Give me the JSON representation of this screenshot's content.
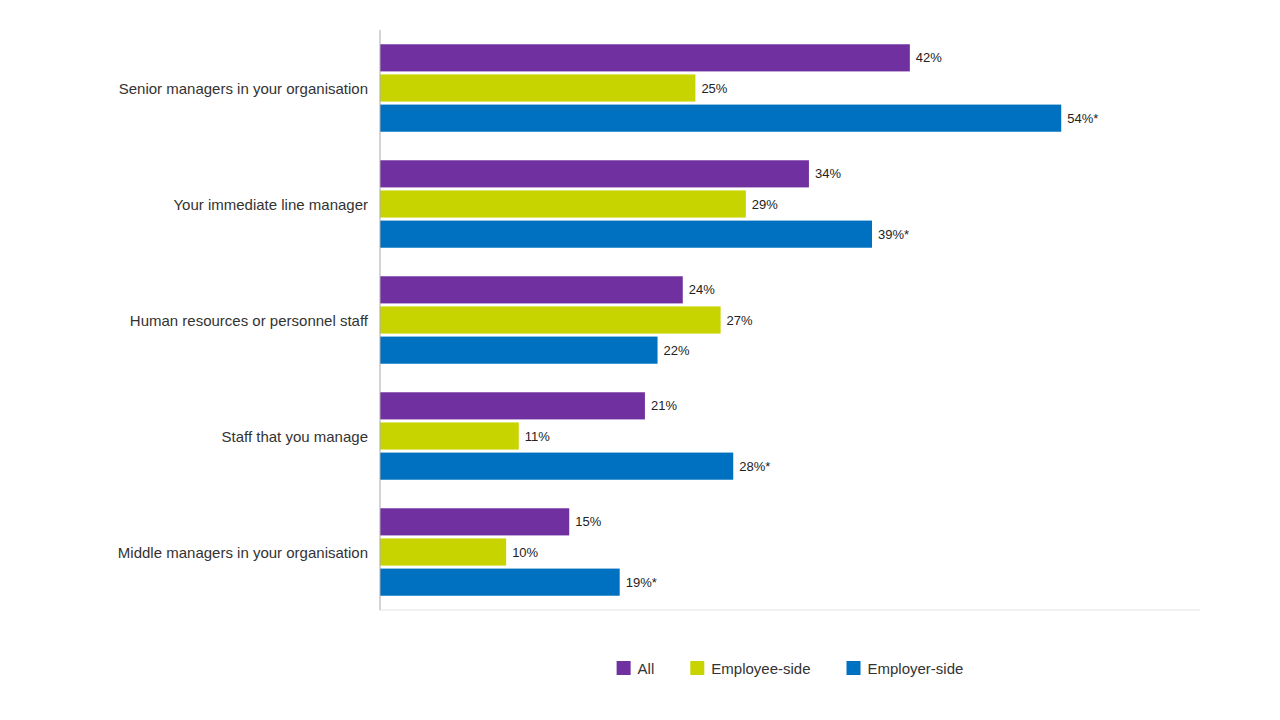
{
  "chart_data": {
    "type": "bar",
    "orientation": "horizontal",
    "categories": [
      "Middle managers in your organisation",
      "Staff that you manage",
      "Human resources or personnel staff",
      "Your immediate line manager",
      "Senior managers in your organisation"
    ],
    "series": [
      {
        "name": "All",
        "color": "#7030a0",
        "values": [
          15,
          21,
          24,
          34,
          42
        ],
        "value_labels": [
          "15%",
          "21%",
          "24%",
          "34%",
          "42%"
        ]
      },
      {
        "name": "Employee-side",
        "color": "#c8d400",
        "values": [
          10,
          11,
          27,
          29,
          25
        ],
        "value_labels": [
          "10%",
          "11%",
          "27%",
          "29%",
          "25%"
        ]
      },
      {
        "name": "Employer-side",
        "color": "#0070c0",
        "values": [
          19,
          28,
          22,
          39,
          54
        ],
        "value_labels": [
          "19%*",
          "28%*",
          "22%",
          "39%*",
          "54%*"
        ]
      }
    ],
    "xlim": [
      0,
      65
    ],
    "data_labels": true,
    "tick_labels": "y",
    "grid": false,
    "legend": "bottom"
  }
}
